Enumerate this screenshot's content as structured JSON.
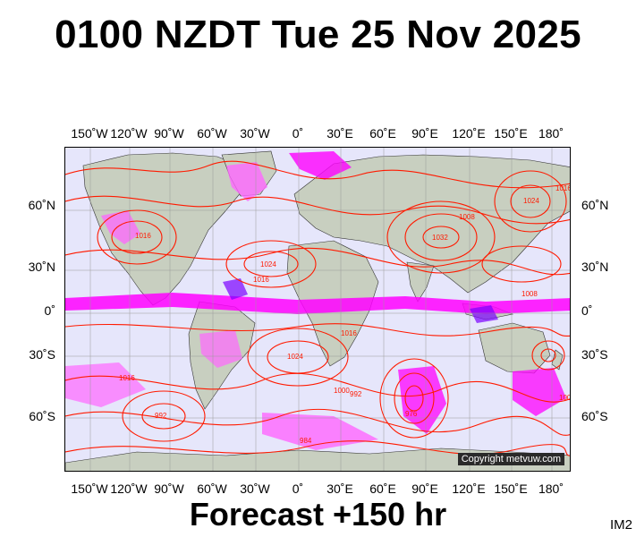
{
  "title": "0100 NZDT Tue 25 Nov 2025",
  "footer": "Forecast +150 hr",
  "image_id": "IM2",
  "copyright": "Copyright metvuw.com",
  "axes": {
    "lon_ticks": [
      "150˚W",
      "120˚W",
      "90˚W",
      "60˚W",
      "30˚W",
      "0˚",
      "30˚E",
      "60˚E",
      "90˚E",
      "120˚E",
      "150˚E",
      "180˚"
    ],
    "lat_ticks": [
      "60˚N",
      "30˚N",
      "0˚",
      "30˚S",
      "60˚S"
    ]
  },
  "pressure_labels": [
    "1024",
    "1016",
    "1032",
    "1008",
    "1000",
    "992",
    "984",
    "976"
  ],
  "colors": {
    "ocean": "#e6e6fb",
    "land": "#c8cfc0",
    "isobar": "#ff1a00",
    "precip_light": "#ff66ff",
    "precip_heavy": "#ff00ff",
    "precip_extreme": "#7a00ff"
  }
}
